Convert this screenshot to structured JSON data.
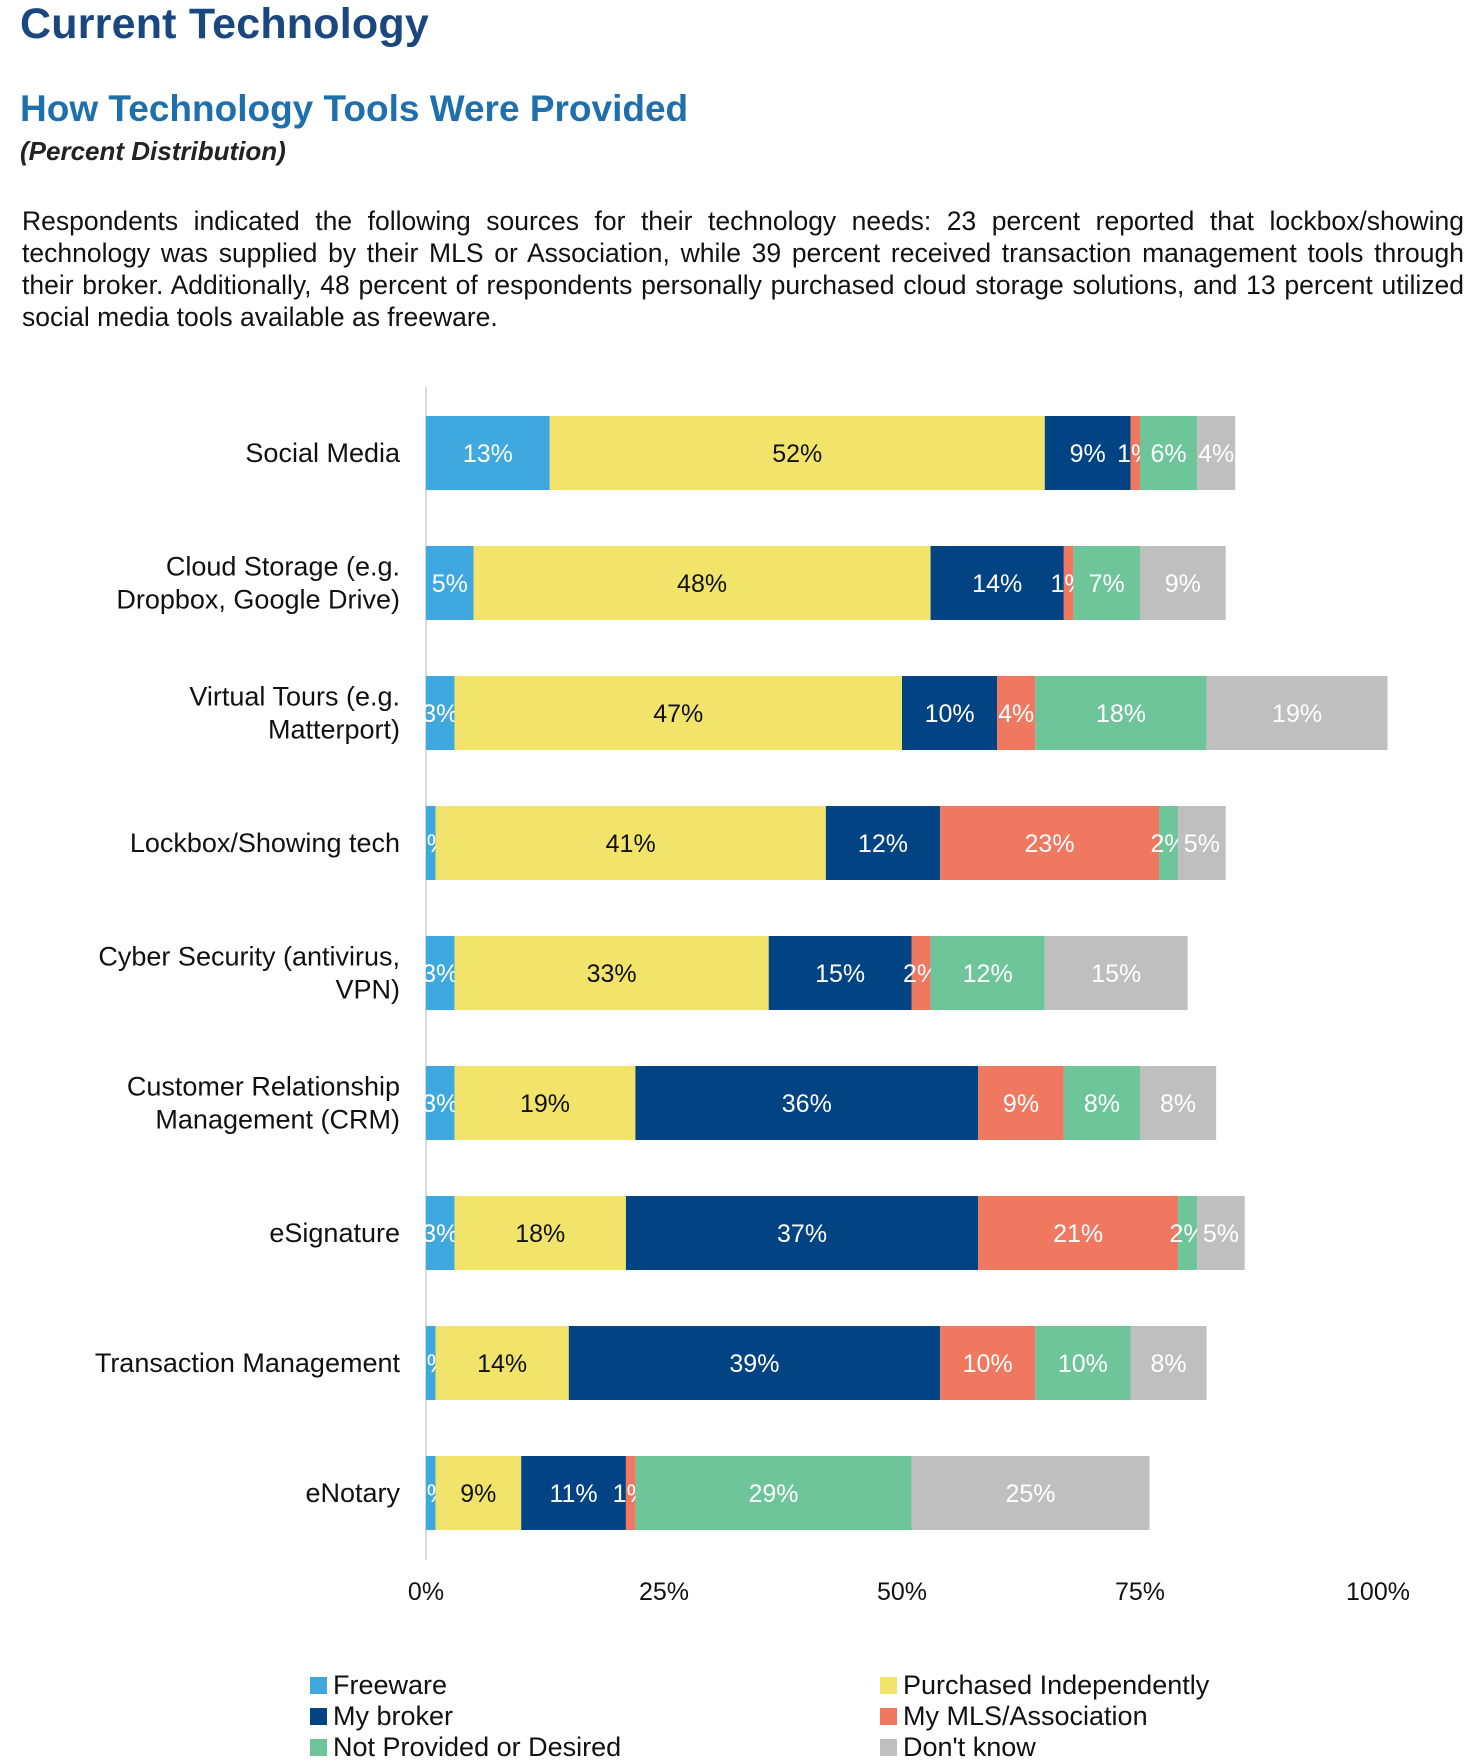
{
  "header": {
    "title": "Current Technology",
    "section_title": "How Technology Tools Were Provided",
    "subtitle": "(Percent Distribution)",
    "intro": "Respondents indicated the following sources for their technology needs: 23 percent reported that lockbox/showing technology was supplied by their MLS or Association, while 39 percent received transaction management tools through their broker. Additionally, 48 percent of respondents personally purchased cloud storage solutions, and 13 percent utilized social media tools available as freeware."
  },
  "chart_data": {
    "type": "bar",
    "orientation": "horizontal",
    "stacked": true,
    "title": "How Technology Tools Were Provided",
    "xlabel": "",
    "ylabel": "",
    "xlim": [
      0,
      100
    ],
    "x_ticks": [
      "0%",
      "25%",
      "50%",
      "75%",
      "100%"
    ],
    "legend_position": "bottom",
    "categories": [
      [
        "Social Media"
      ],
      [
        "Cloud Storage (e.g.",
        "Dropbox, Google Drive)"
      ],
      [
        "Virtual Tours (e.g.",
        "Matterport)"
      ],
      [
        "Lockbox/Showing tech"
      ],
      [
        "Cyber Security (antivirus,",
        "VPN)"
      ],
      [
        "Customer Relationship",
        "Management (CRM)"
      ],
      [
        "eSignature"
      ],
      [
        "Transaction Management"
      ],
      [
        "eNotary"
      ]
    ],
    "series": [
      {
        "name": "Freeware",
        "color": "#3ea8df",
        "label_color": "#ffffff",
        "values": [
          13,
          5,
          3,
          1,
          3,
          3,
          3,
          1,
          1
        ]
      },
      {
        "name": "Purchased Independently",
        "color": "#f2e46b",
        "label_color": "#111111",
        "values": [
          52,
          48,
          47,
          41,
          33,
          19,
          18,
          14,
          9
        ]
      },
      {
        "name": "My broker",
        "color": "#024383",
        "label_color": "#ffffff",
        "values": [
          9,
          14,
          10,
          12,
          15,
          36,
          37,
          39,
          11
        ]
      },
      {
        "name": "My MLS/Association",
        "color": "#f07860",
        "label_color": "#ffffff",
        "values": [
          1,
          1,
          4,
          23,
          2,
          9,
          21,
          10,
          1
        ]
      },
      {
        "name": "Not Provided or Desired",
        "color": "#6fc59a",
        "label_color": "#ffffff",
        "values": [
          6,
          7,
          18,
          2,
          12,
          8,
          2,
          10,
          29
        ]
      },
      {
        "name": "Don't know",
        "color": "#bfbfbf",
        "label_color": "#ffffff",
        "values": [
          4,
          9,
          19,
          5,
          15,
          8,
          5,
          8,
          25
        ]
      }
    ]
  }
}
